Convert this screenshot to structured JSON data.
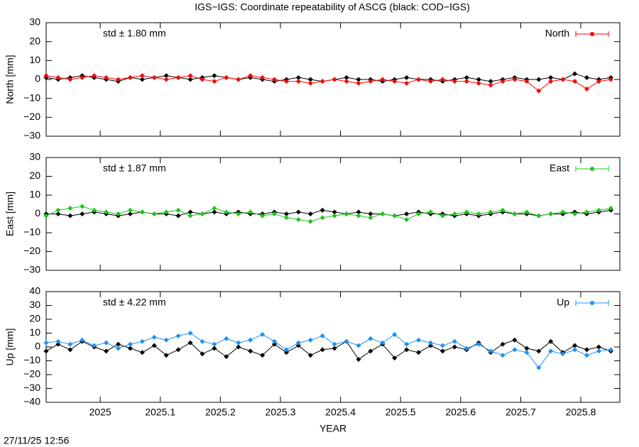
{
  "title": "IGS−IGS: Coordinate repeatability of ASCG (black: COD−IGS)",
  "timestamp": "27/11/25 12:56",
  "chart_data": [
    {
      "type": "line",
      "ylabel": "North [mm]",
      "annotation": "std ± 1.80 mm",
      "xlim": [
        2024.91,
        2025.865
      ],
      "xticks": [
        2025,
        2025.1,
        2025.2,
        2025.3,
        2025.4,
        2025.5,
        2025.6,
        2025.7,
        2025.8
      ],
      "ylim": [
        -30,
        30
      ],
      "yticks": [
        {
          "value": -30,
          "label": "−30"
        },
        {
          "value": -20,
          "label": "−20"
        },
        {
          "value": -10,
          "label": "−10"
        },
        0,
        10,
        20,
        30
      ],
      "x": [
        2024.91,
        2024.93,
        2024.95,
        2024.97,
        2024.99,
        2025.01,
        2025.03,
        2025.05,
        2025.07,
        2025.09,
        2025.11,
        2025.13,
        2025.15,
        2025.17,
        2025.19,
        2025.21,
        2025.23,
        2025.25,
        2025.27,
        2025.29,
        2025.31,
        2025.33,
        2025.35,
        2025.37,
        2025.39,
        2025.41,
        2025.43,
        2025.45,
        2025.47,
        2025.49,
        2025.51,
        2025.53,
        2025.55,
        2025.57,
        2025.59,
        2025.61,
        2025.63,
        2025.65,
        2025.67,
        2025.69,
        2025.71,
        2025.73,
        2025.75,
        2025.77,
        2025.79,
        2025.81,
        2025.83,
        2025.85
      ],
      "series": [
        {
          "color": "#000000",
          "values": [
            1,
            0,
            1,
            2,
            1,
            0,
            -1,
            1,
            0,
            1,
            2,
            1,
            0,
            1,
            2,
            1,
            0,
            1,
            0,
            -1,
            0,
            1,
            0,
            -1,
            0,
            1,
            0,
            0,
            -1,
            0,
            1,
            0,
            0,
            -1,
            0,
            1,
            0,
            -1,
            0,
            1,
            0,
            0,
            1,
            0,
            3,
            1,
            0,
            1
          ]
        },
        {
          "name": "North",
          "color": "#ff0000",
          "values": [
            2,
            1,
            0,
            1,
            2,
            1,
            0,
            1,
            2,
            1,
            0,
            1,
            2,
            0,
            -1,
            1,
            0,
            2,
            1,
            0,
            -1,
            -1,
            -2,
            -1,
            0,
            -1,
            -2,
            -1,
            0,
            -1,
            -2,
            0,
            -1,
            0,
            -1,
            -1,
            -2,
            -3,
            -1,
            0,
            -1,
            -6,
            -1,
            0,
            -1,
            -5,
            -1,
            0
          ]
        }
      ]
    },
    {
      "type": "line",
      "ylabel": "East [mm]",
      "annotation": "std ± 1.87 mm",
      "xlim": [
        2024.91,
        2025.865
      ],
      "xticks": [
        2025,
        2025.1,
        2025.2,
        2025.3,
        2025.4,
        2025.5,
        2025.6,
        2025.7,
        2025.8
      ],
      "ylim": [
        -30,
        30
      ],
      "yticks": [
        {
          "value": -30,
          "label": "−30"
        },
        {
          "value": -20,
          "label": "−20"
        },
        {
          "value": -10,
          "label": "−10"
        },
        0,
        10,
        20,
        30
      ],
      "x": [
        2024.91,
        2024.93,
        2024.95,
        2024.97,
        2024.99,
        2025.01,
        2025.03,
        2025.05,
        2025.07,
        2025.09,
        2025.11,
        2025.13,
        2025.15,
        2025.17,
        2025.19,
        2025.21,
        2025.23,
        2025.25,
        2025.27,
        2025.29,
        2025.31,
        2025.33,
        2025.35,
        2025.37,
        2025.39,
        2025.41,
        2025.43,
        2025.45,
        2025.47,
        2025.49,
        2025.51,
        2025.53,
        2025.55,
        2025.57,
        2025.59,
        2025.61,
        2025.63,
        2025.65,
        2025.67,
        2025.69,
        2025.71,
        2025.73,
        2025.75,
        2025.77,
        2025.79,
        2025.81,
        2025.83,
        2025.85
      ],
      "series": [
        {
          "color": "#000000",
          "values": [
            0,
            0,
            -1,
            0,
            1,
            0,
            -1,
            0,
            1,
            0,
            0,
            -1,
            1,
            0,
            1,
            0,
            1,
            0,
            0,
            1,
            0,
            1,
            0,
            2,
            1,
            0,
            1,
            0,
            0,
            -1,
            0,
            1,
            0,
            0,
            -1,
            0,
            -1,
            0,
            1,
            0,
            0,
            -1,
            0,
            0,
            1,
            0,
            1,
            2
          ]
        },
        {
          "name": "East",
          "color": "#1fc41f",
          "values": [
            -1,
            2,
            3,
            4,
            2,
            1,
            0,
            2,
            1,
            0,
            1,
            2,
            -1,
            0,
            3,
            1,
            0,
            1,
            -1,
            0,
            -2,
            -3,
            -4,
            -2,
            -1,
            0,
            -1,
            -2,
            0,
            -1,
            -3,
            0,
            1,
            -1,
            0,
            1,
            0,
            1,
            2,
            0,
            1,
            -1,
            0,
            1,
            0,
            1,
            2,
            3
          ]
        }
      ]
    },
    {
      "type": "line",
      "ylabel": "Up [mm]",
      "annotation": "std ± 4.22 mm",
      "xlabel": "YEAR",
      "xlim": [
        2024.91,
        2025.865
      ],
      "xticks": [
        2025,
        2025.1,
        2025.2,
        2025.3,
        2025.4,
        2025.5,
        2025.6,
        2025.7,
        2025.8
      ],
      "ylim": [
        -40,
        40
      ],
      "yticks": [
        {
          "value": -40,
          "label": "−40"
        },
        {
          "value": -30,
          "label": "−30"
        },
        {
          "value": -20,
          "label": "−20"
        },
        {
          "value": -10,
          "label": "−10"
        },
        0,
        10,
        20,
        30,
        40
      ],
      "x": [
        2024.91,
        2024.93,
        2024.95,
        2024.97,
        2024.99,
        2025.01,
        2025.03,
        2025.05,
        2025.07,
        2025.09,
        2025.11,
        2025.13,
        2025.15,
        2025.17,
        2025.19,
        2025.21,
        2025.23,
        2025.25,
        2025.27,
        2025.29,
        2025.31,
        2025.33,
        2025.35,
        2025.37,
        2025.39,
        2025.41,
        2025.43,
        2025.45,
        2025.47,
        2025.49,
        2025.51,
        2025.53,
        2025.55,
        2025.57,
        2025.59,
        2025.61,
        2025.63,
        2025.65,
        2025.67,
        2025.69,
        2025.71,
        2025.73,
        2025.75,
        2025.77,
        2025.79,
        2025.81,
        2025.83,
        2025.85
      ],
      "series": [
        {
          "color": "#000000",
          "values": [
            -3,
            2,
            -2,
            4,
            0,
            -3,
            2,
            -1,
            -4,
            1,
            -6,
            -2,
            3,
            -5,
            -1,
            -7,
            0,
            -3,
            -6,
            2,
            -4,
            1,
            -6,
            -2,
            -1,
            4,
            -9,
            -3,
            2,
            -8,
            -2,
            -4,
            1,
            -3,
            0,
            -2,
            3,
            -4,
            2,
            5,
            -1,
            -3,
            4,
            -4,
            1,
            -2,
            0,
            -3
          ]
        },
        {
          "name": "Up",
          "color": "#2090f0",
          "values": [
            3,
            4,
            2,
            5,
            1,
            3,
            -1,
            2,
            4,
            7,
            5,
            8,
            10,
            4,
            2,
            6,
            3,
            5,
            9,
            4,
            -2,
            3,
            5,
            8,
            2,
            4,
            1,
            6,
            3,
            9,
            2,
            5,
            3,
            1,
            4,
            -1,
            2,
            -3,
            -6,
            -2,
            -4,
            -15,
            -3,
            -5,
            -2,
            -6,
            -3,
            -2
          ]
        }
      ]
    }
  ]
}
